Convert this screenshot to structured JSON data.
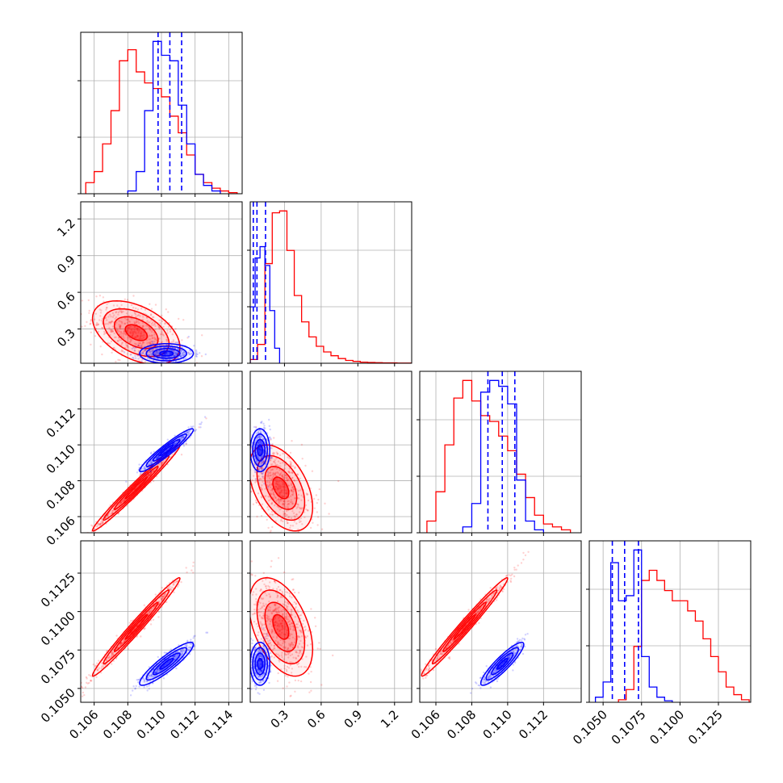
{
  "chart_data": {
    "type": "corner",
    "grid": true,
    "parameters": 4,
    "colors": {
      "red": "#ff0000",
      "blue": "#0000ff"
    },
    "series": [
      {
        "color": "red"
      },
      {
        "color": "blue"
      }
    ],
    "axes": {
      "p0": {
        "range": [
          0.1052,
          0.1148
        ],
        "ticks": [
          0.106,
          0.108,
          0.11,
          0.112,
          0.114
        ],
        "tick_labels": [
          "0.106",
          "0.108",
          "0.110",
          "0.112",
          "0.114"
        ]
      },
      "p1": {
        "range": [
          0.02,
          1.34
        ],
        "ticks": [
          0.3,
          0.6,
          0.9,
          1.2
        ],
        "tick_labels": [
          "0.3",
          "0.6",
          "0.9",
          "1.2"
        ]
      },
      "p2": {
        "range": [
          0.1051,
          0.1141
        ],
        "ticks": [
          0.106,
          0.108,
          0.11,
          0.112
        ],
        "tick_labels": [
          "0.106",
          "0.108",
          "0.110",
          "0.112"
        ]
      },
      "p3": {
        "range": [
          0.1041,
          0.1146
        ],
        "ticks": [
          0.105,
          0.1075,
          0.11,
          0.1125
        ],
        "tick_labels": [
          "0.1050",
          "0.1075",
          "0.1100",
          "0.1125"
        ]
      }
    },
    "diagonal_histograms": [
      {
        "param": "p0",
        "red": {
          "edges": [
            0.1055,
            0.106,
            0.1065,
            0.107,
            0.1075,
            0.108,
            0.1085,
            0.109,
            0.1095,
            0.11,
            0.1105,
            0.111,
            0.1115,
            0.112,
            0.1125,
            0.113,
            0.1135,
            0.114,
            0.1145
          ],
          "counts": [
            4,
            8,
            18,
            30,
            48,
            52,
            44,
            40,
            38,
            35,
            28,
            22,
            14,
            7,
            4,
            2,
            1,
            0.4
          ]
        },
        "blue": {
          "edges": [
            0.108,
            0.1085,
            0.109,
            0.1095,
            0.11,
            0.1105,
            0.111,
            0.1115,
            0.112,
            0.1125,
            0.113,
            0.1135
          ],
          "counts": [
            1,
            8,
            30,
            55,
            50,
            48,
            32,
            18,
            7,
            3,
            1
          ]
        },
        "quantile_lines": [
          0.1098,
          0.1105,
          0.1112
        ]
      },
      {
        "param": "p1",
        "red": {
          "edges": [
            0.02,
            0.08,
            0.14,
            0.2,
            0.26,
            0.32,
            0.38,
            0.44,
            0.5,
            0.56,
            0.62,
            0.68,
            0.74,
            0.8,
            0.86,
            0.92,
            0.98,
            1.04,
            1.1,
            1.16,
            1.22,
            1.28,
            1.34
          ],
          "counts": [
            2,
            10,
            53,
            80,
            81,
            60,
            36,
            22,
            14,
            9,
            6,
            4,
            2.5,
            1.5,
            1,
            0.6,
            0.4,
            0.3,
            0.2,
            0.2,
            0.1,
            0.1
          ]
        },
        "blue": {
          "edges": [
            0.02,
            0.06,
            0.1,
            0.14,
            0.18,
            0.22,
            0.26
          ],
          "counts": [
            30,
            56,
            62,
            52,
            28,
            8
          ]
        },
        "quantile_lines": [
          0.045,
          0.075,
          0.145
        ]
      },
      {
        "param": "p2",
        "red": {
          "edges": [
            0.1055,
            0.106,
            0.1065,
            0.107,
            0.1075,
            0.108,
            0.1085,
            0.109,
            0.1095,
            0.11,
            0.1105,
            0.111,
            0.1115,
            0.112,
            0.1125,
            0.113,
            0.1135
          ],
          "counts": [
            4,
            14,
            30,
            46,
            52,
            45,
            40,
            38,
            33,
            28,
            20,
            12,
            6,
            3,
            2,
            1
          ]
        },
        "blue": {
          "edges": [
            0.1075,
            0.108,
            0.1085,
            0.109,
            0.1095,
            0.11,
            0.1105,
            0.111,
            0.1115,
            0.112
          ],
          "counts": [
            2,
            10,
            48,
            52,
            50,
            44,
            18,
            4,
            1
          ]
        },
        "quantile_lines": [
          0.1089,
          0.1097,
          0.1104
        ]
      },
      {
        "param": "p3",
        "red": {
          "edges": [
            0.106,
            0.1065,
            0.107,
            0.1075,
            0.108,
            0.1085,
            0.109,
            0.1095,
            0.11,
            0.1105,
            0.111,
            0.1115,
            0.112,
            0.1125,
            0.113,
            0.1135,
            0.114,
            0.1145
          ],
          "counts": [
            1,
            5,
            22,
            48,
            52,
            48,
            44,
            40,
            40,
            36,
            32,
            25,
            18,
            12,
            6,
            3,
            1
          ]
        },
        "blue": {
          "edges": [
            0.1045,
            0.105,
            0.1055,
            0.106,
            0.1065,
            0.107,
            0.1075,
            0.108,
            0.1085,
            0.109,
            0.1095
          ],
          "counts": [
            2,
            8,
            55,
            40,
            42,
            60,
            18,
            6,
            2,
            0.6
          ]
        },
        "quantile_lines": [
          0.1056,
          0.1064,
          0.1073
        ]
      }
    ],
    "pair_distributions": [
      {
        "x": "p0",
        "y": "p1",
        "red": {
          "mean": [
            0.1085,
            0.27
          ],
          "sd": [
            0.0013,
            0.13
          ],
          "rho": -0.45
        },
        "blue": {
          "mean": [
            0.1103,
            0.1
          ],
          "sd": [
            0.0008,
            0.04
          ],
          "rho": 0.0
        }
      },
      {
        "x": "p0",
        "y": "p2",
        "red": {
          "mean": [
            0.1085,
            0.1076
          ],
          "sd": [
            0.0013,
            0.0012
          ],
          "rho": 0.985
        },
        "blue": {
          "mean": [
            0.1103,
            0.1097
          ],
          "sd": [
            0.0008,
            0.0006
          ],
          "rho": 0.95
        }
      },
      {
        "x": "p1",
        "y": "p2",
        "red": {
          "mean": [
            0.27,
            0.1076
          ],
          "sd": [
            0.13,
            0.0012
          ],
          "rho": -0.45
        },
        "blue": {
          "mean": [
            0.1,
            0.1097
          ],
          "sd": [
            0.04,
            0.0006
          ],
          "rho": 0.0
        }
      },
      {
        "x": "p0",
        "y": "p3",
        "red": {
          "mean": [
            0.1085,
            0.109
          ],
          "sd": [
            0.0013,
            0.0016
          ],
          "rho": 0.985
        },
        "blue": {
          "mean": [
            0.1103,
            0.1066
          ],
          "sd": [
            0.0008,
            0.0007
          ],
          "rho": 0.9
        }
      },
      {
        "x": "p1",
        "y": "p3",
        "red": {
          "mean": [
            0.27,
            0.109
          ],
          "sd": [
            0.13,
            0.0016
          ],
          "rho": -0.45
        },
        "blue": {
          "mean": [
            0.1,
            0.1066
          ],
          "sd": [
            0.04,
            0.0007
          ],
          "rho": 0.0
        }
      },
      {
        "x": "p2",
        "y": "p3",
        "red": {
          "mean": [
            0.1076,
            0.109
          ],
          "sd": [
            0.0012,
            0.0016
          ],
          "rho": 0.985
        },
        "blue": {
          "mean": [
            0.1097,
            0.1066
          ],
          "sd": [
            0.0006,
            0.0007
          ],
          "rho": 0.9
        }
      }
    ]
  }
}
